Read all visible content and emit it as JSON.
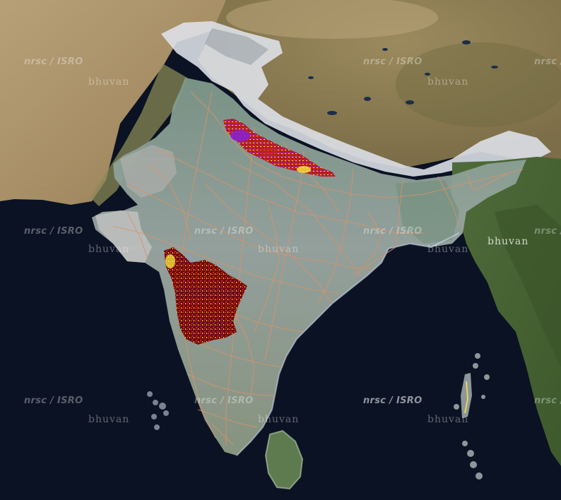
{
  "map": {
    "watermarks": {
      "credit": "nrsc / ISRO",
      "brand": "bhuvan"
    },
    "overlay_colors": {
      "sea": "#0b1223",
      "land_plateau": "#b39b70",
      "india_overlay": "#8fa296",
      "snow": "#dfe3ea",
      "roads": "#d9926a",
      "hotspot_dark": "#7a0a0a",
      "hotspot_red": "#c0231b",
      "hotspot_yellow": "#f3e23a",
      "hotspot_purple": "#8a1fd0"
    }
  }
}
